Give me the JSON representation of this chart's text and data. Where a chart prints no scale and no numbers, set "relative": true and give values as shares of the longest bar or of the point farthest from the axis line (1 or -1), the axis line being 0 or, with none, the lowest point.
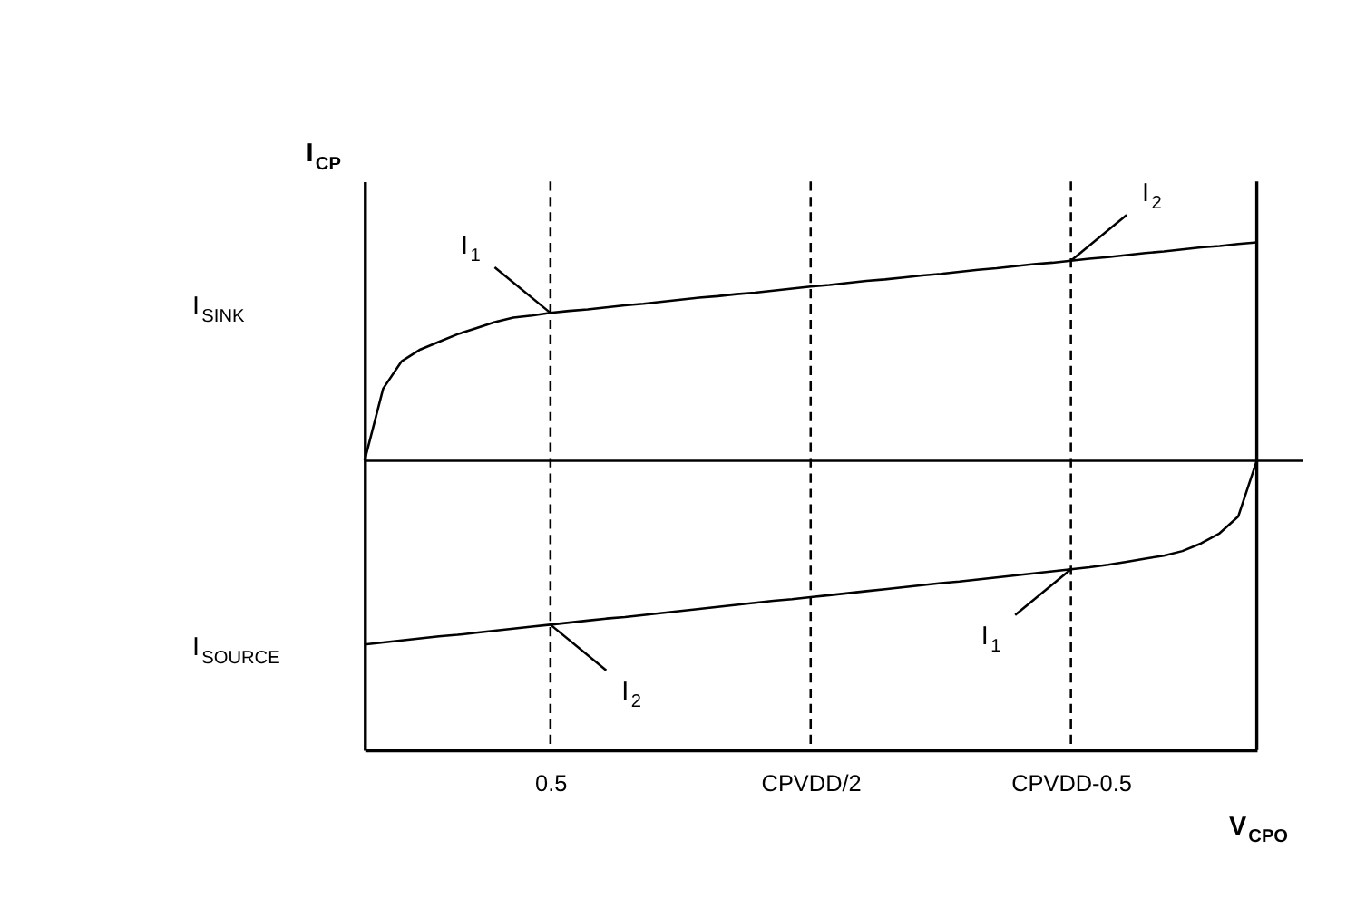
{
  "chart_data": {
    "type": "line",
    "relative": true,
    "xlabel": "V$_{CPO}$",
    "ylabel": "I$_{CP}$",
    "categories": [
      null,
      null,
      null,
      null,
      null,
      null,
      null,
      null,
      null,
      null,
      "0.5",
      null,
      null,
      null,
      null,
      null,
      null,
      null,
      null,
      null,
      null,
      null,
      null,
      null,
      "CPVDD/2",
      null,
      null,
      null,
      null,
      null,
      null,
      null,
      null,
      null,
      null,
      null,
      null,
      null,
      "CPVDD-0.5",
      null,
      null,
      null,
      null,
      null,
      null,
      null,
      null,
      null,
      null
    ],
    "series": [
      {
        "color": "#000000",
        "values": [
          0.57,
          0.712,
          0.766,
          0.789,
          0.804,
          0.819,
          0.831,
          0.843,
          0.852,
          0.856,
          0.861,
          0.865,
          0.868,
          0.872,
          0.876,
          0.879,
          0.883,
          0.887,
          0.891,
          0.894,
          0.898,
          0.901,
          0.905,
          0.909,
          0.913,
          0.916,
          0.92,
          0.924,
          0.927,
          0.931,
          0.935,
          0.938,
          0.942,
          0.946,
          0.949,
          0.953,
          0.957,
          0.96,
          0.964,
          0.968,
          0.971,
          0.975,
          0.979,
          0.982,
          0.986,
          0.99,
          0.993,
          0.997,
          1.0
        ]
      },
      {
        "color": "#000000",
        "values": [
          0.208,
          0.212,
          0.216,
          0.22,
          0.224,
          0.227,
          0.231,
          0.235,
          0.239,
          0.243,
          0.247,
          0.251,
          0.255,
          0.259,
          0.262,
          0.266,
          0.27,
          0.274,
          0.278,
          0.282,
          0.286,
          0.29,
          0.294,
          0.297,
          0.301,
          0.305,
          0.309,
          0.313,
          0.317,
          0.321,
          0.325,
          0.329,
          0.332,
          0.336,
          0.34,
          0.344,
          0.348,
          0.352,
          0.356,
          0.36,
          0.365,
          0.371,
          0.377,
          0.383,
          0.392,
          0.407,
          0.427,
          0.46,
          0.57
        ]
      }
    ],
    "ref_lines": [
      {
        "axis": "x",
        "value": "0.5",
        "color": "#000000",
        "line_style": "dashed"
      },
      {
        "axis": "x",
        "value": "CPVDD/2",
        "color": "#000000",
        "line_style": "dashed"
      },
      {
        "axis": "x",
        "value": "CPVDD-0.5",
        "color": "#000000",
        "line_style": "dashed"
      },
      {
        "axis": "y",
        "value": 0.57,
        "color": "#000000",
        "line_style": "solid"
      }
    ],
    "annotations": [
      {
        "text": "I$_{1}$",
        "x": "0.5",
        "y": 0.861
      },
      {
        "text": "I$_{2}$",
        "x": "CPVDD-0.5",
        "y": 0.964
      },
      {
        "text": "I$_{2}$",
        "x": "0.5",
        "y": 0.247
      },
      {
        "text": "I$_{1}$",
        "x": "CPVDD-0.5",
        "y": 0.356
      },
      "I$_{SINK}$",
      "I$_{SOURCE}$"
    ],
    "grid": false,
    "marker": "none",
    "line_style": "solid"
  }
}
